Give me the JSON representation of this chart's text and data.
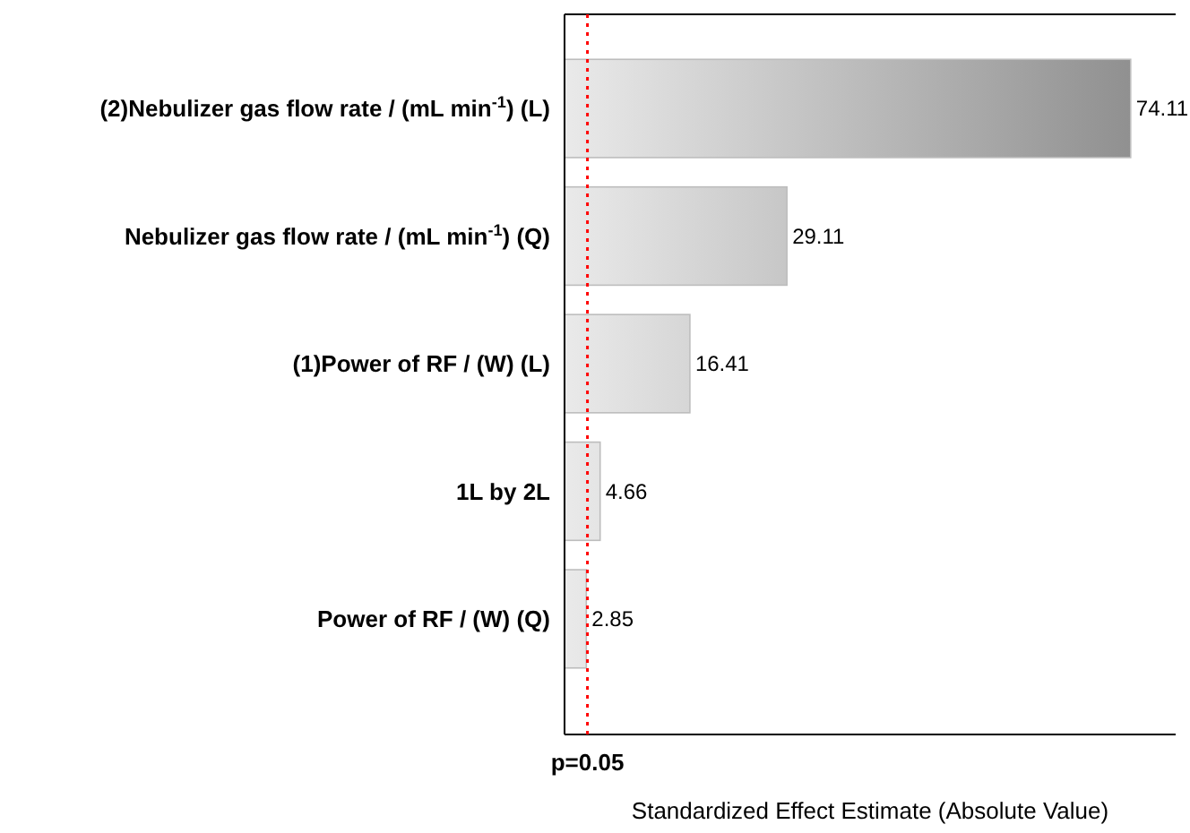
{
  "chart_data": {
    "type": "bar",
    "orientation": "horizontal",
    "xlabel": "Standardized Effect Estimate (Absolute Value)",
    "categories": [
      "(2)Nebulizer gas flow rate / (mL min$^{-1}$) (L)",
      "Nebulizer gas flow rate / (mL min$^{-1}$) (Q)",
      "(1)Power of RF / (W) (L)",
      "1L by 2L",
      "Power of RF / (W) (Q)"
    ],
    "values": [
      74.11,
      29.11,
      16.41,
      4.66,
      2.85
    ],
    "color": "#bdbdbd",
    "data_labels": true,
    "xlim": [
      0,
      80
    ],
    "tick_labels": "y",
    "annotations": [
      "p=0.05"
    ],
    "ref_lines": [
      {
        "axis": "x",
        "value": 3,
        "color": "#ff0000",
        "line_style": "dotted"
      }
    ]
  }
}
